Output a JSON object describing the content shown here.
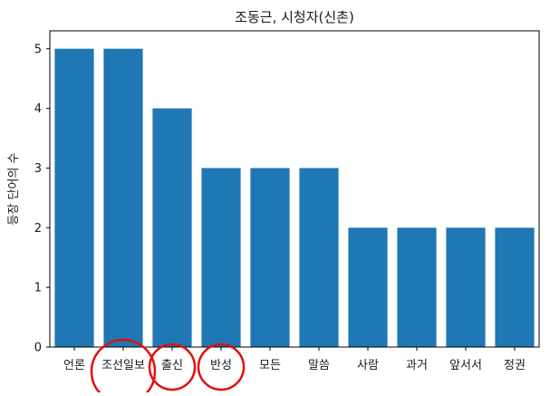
{
  "chart_data": {
    "type": "bar",
    "title": "조동근, 시청자(신촌)",
    "xlabel": "",
    "ylabel": "등장 단어의 수",
    "categories": [
      "언론",
      "조선일보",
      "출신",
      "반성",
      "모든",
      "말씀",
      "사람",
      "과거",
      "앞서서",
      "정권"
    ],
    "values": [
      5,
      5,
      4,
      3,
      3,
      3,
      2,
      2,
      2,
      2
    ],
    "ylim": [
      0,
      5.3
    ],
    "yticks": [
      0,
      1,
      2,
      3,
      4,
      5
    ],
    "grid": false,
    "legend": "none",
    "bar_color": "#1f77b4",
    "annotations": {
      "type": "red circles",
      "color": "#e01010",
      "circled_categories": [
        "조선일보",
        "출신",
        "반성"
      ]
    }
  }
}
